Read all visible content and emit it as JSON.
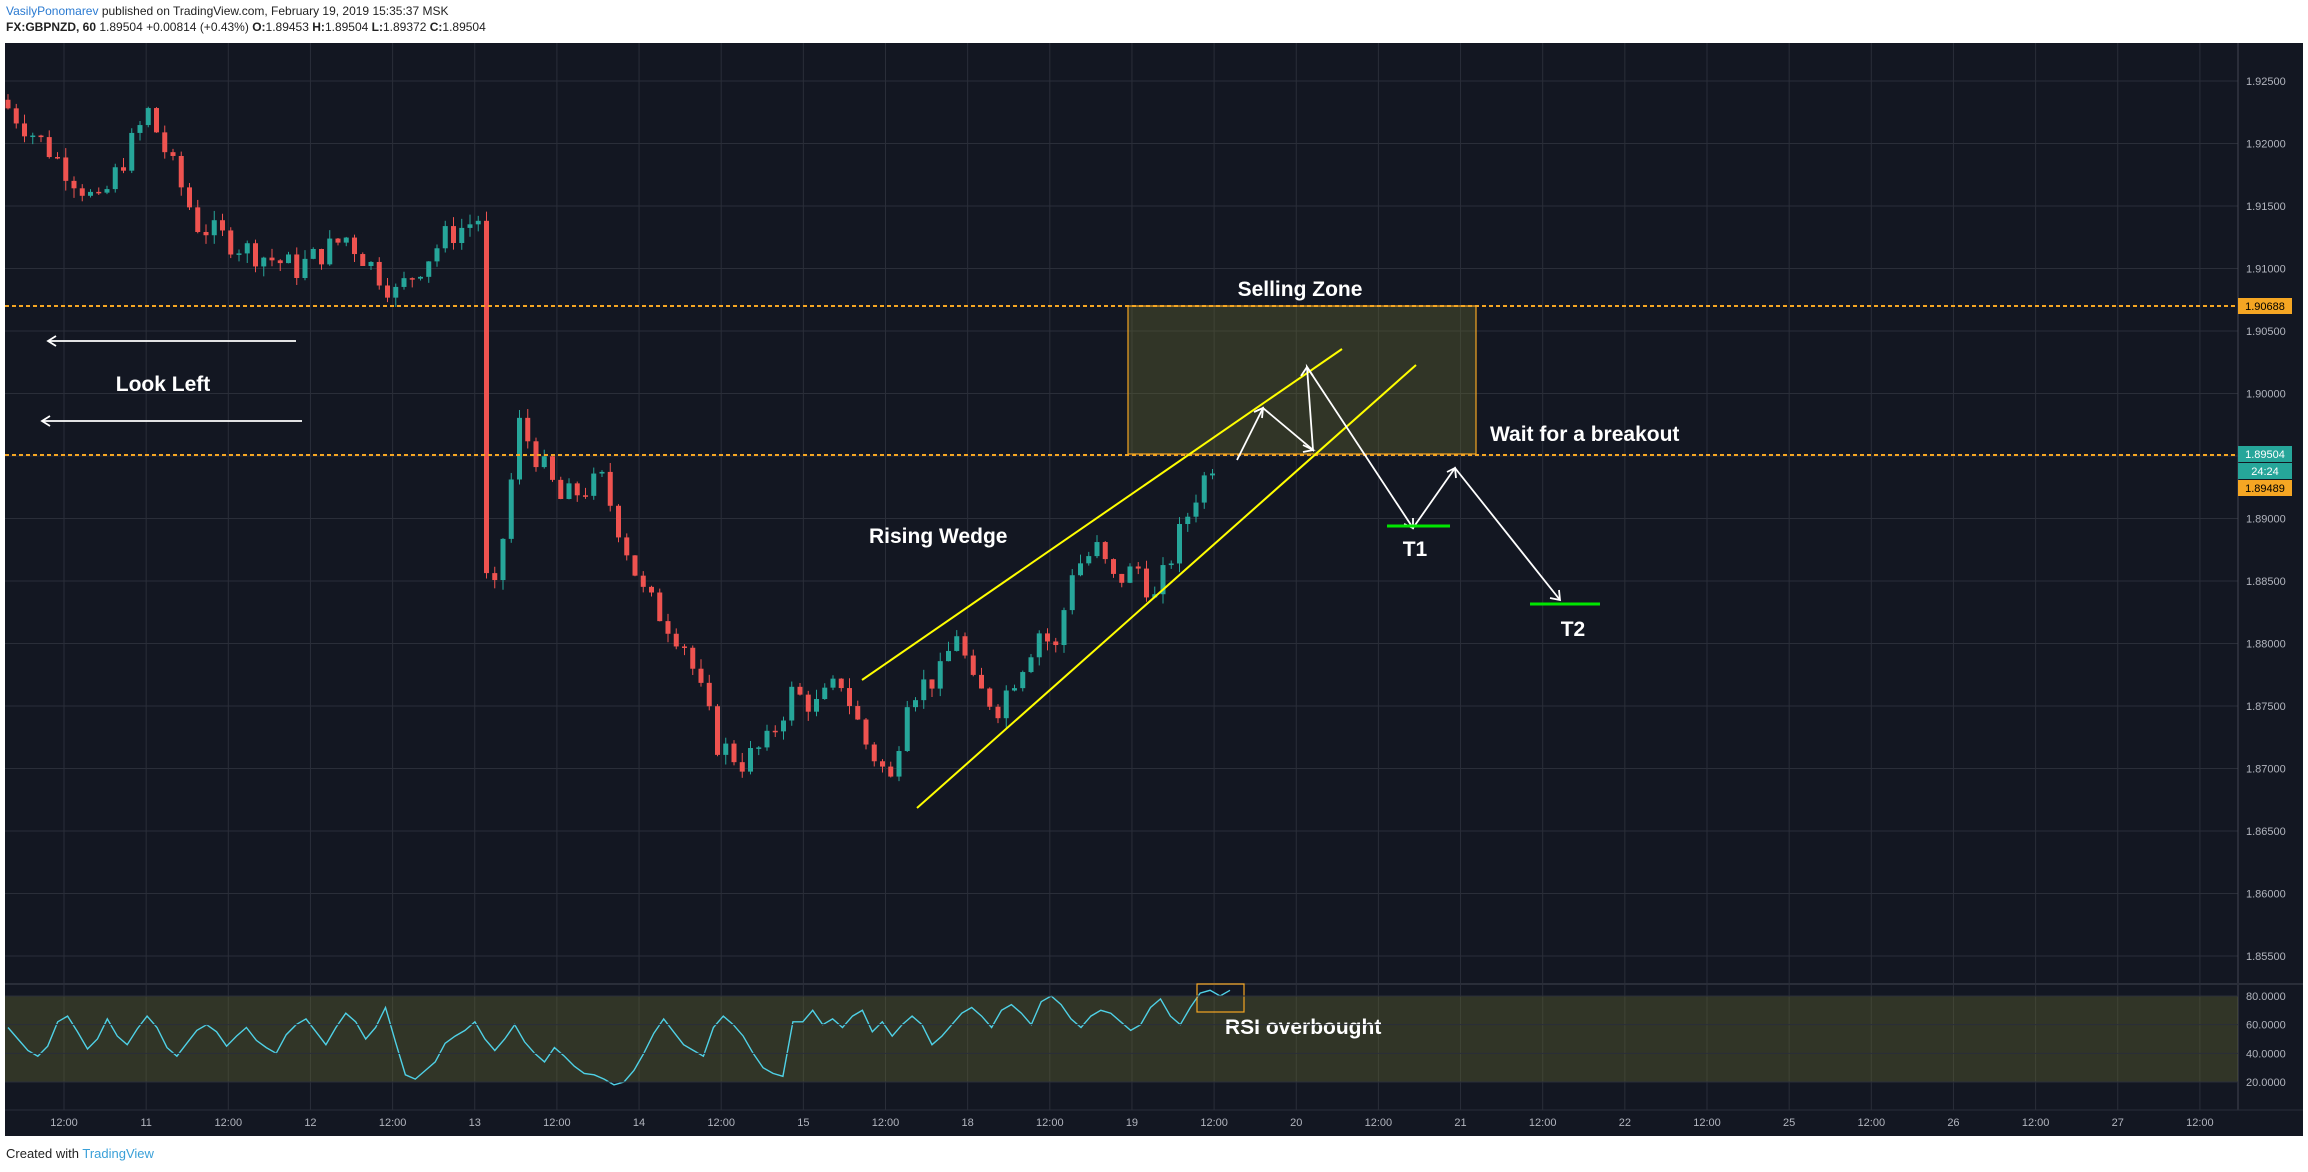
{
  "header": {
    "author": "VasilyPonomarev",
    "published": "published on TradingView.com, February 19, 2019 15:35:37 MSK",
    "symbol": "FX:GBPNZD, 60",
    "last": "1.89504",
    "change": "+0.00814 (+0.43%)",
    "o_label": "O:",
    "o": "1.89453",
    "h_label": "H:",
    "h": "1.89504",
    "l_label": "L:",
    "l": "1.89372",
    "c_label": "C:",
    "c": "1.89504"
  },
  "footer": {
    "created_with": "Created with",
    "brand": "TradingView"
  },
  "colors": {
    "background": "#131722",
    "grid": "#2a2e39",
    "up": "#26a69a",
    "down": "#ef5350",
    "level": "#f5a623",
    "wedge": "#ffff00",
    "arrows": "#ffffff",
    "target": "#00e600",
    "rsi_line": "#4fd1e6"
  },
  "annotations": {
    "selling_zone": "Selling Zone",
    "look_left": "Look Left",
    "wait": "Wait for a breakout",
    "rising_wedge": "Rising Wedge",
    "t1": "T1",
    "t2": "T2",
    "rsi": "RSI overbought"
  },
  "price_badges": {
    "upper_level": "1.90688",
    "last": "1.89504",
    "countdown": "24:24",
    "lower_level": "1.89489"
  },
  "chart_data": {
    "type": "candlestick",
    "symbol": "FX:GBPNZD",
    "interval": "60",
    "price_axis": {
      "ticks": [
        "1.92500",
        "1.92000",
        "1.91500",
        "1.91000",
        "1.90500",
        "1.90000",
        "1.89500",
        "1.89000",
        "1.88500",
        "1.88000",
        "1.87500",
        "1.87000",
        "1.86500",
        "1.86000",
        "1.85500"
      ],
      "range": [
        1.852,
        1.93
      ]
    },
    "time_axis": {
      "ticks": [
        "12:00",
        "11",
        "12:00",
        "12",
        "12:00",
        "13",
        "12:00",
        "14",
        "12:00",
        "15",
        "12:00",
        "18",
        "12:00",
        "19",
        "12:00",
        "20",
        "12:00",
        "21",
        "12:00",
        "22",
        "12:00",
        "25",
        "12:00",
        "26",
        "12:00",
        "27",
        "12:00"
      ]
    },
    "levels": [
      1.90688,
      1.89489
    ],
    "path_points": [
      [
        0,
        1.9235
      ],
      [
        6,
        1.9195
      ],
      [
        12,
        1.915
      ],
      [
        18,
        1.9225
      ],
      [
        24,
        1.9135
      ],
      [
        30,
        1.9115
      ],
      [
        36,
        1.91
      ],
      [
        42,
        1.9125
      ],
      [
        48,
        1.908
      ],
      [
        54,
        1.9125
      ],
      [
        58,
        1.914
      ],
      [
        59,
        1.885
      ],
      [
        60,
        1.884
      ],
      [
        63,
        1.8975
      ],
      [
        68,
        1.8915
      ],
      [
        73,
        1.893
      ],
      [
        78,
        1.884
      ],
      [
        83,
        1.88
      ],
      [
        87,
        1.872
      ],
      [
        90,
        1.8705
      ],
      [
        93,
        1.872
      ],
      [
        96,
        1.876
      ],
      [
        99,
        1.875
      ],
      [
        102,
        1.877
      ],
      [
        105,
        1.872
      ],
      [
        108,
        1.869
      ],
      [
        110,
        1.876
      ],
      [
        114,
        1.8775
      ],
      [
        116,
        1.881
      ],
      [
        118,
        1.8765
      ],
      [
        121,
        1.875
      ],
      [
        124,
        1.8785
      ],
      [
        126,
        1.881
      ],
      [
        128,
        1.8795
      ],
      [
        130,
        1.886
      ],
      [
        133,
        1.8875
      ],
      [
        135,
        1.885
      ],
      [
        138,
        1.886
      ],
      [
        140,
        1.8835
      ],
      [
        142,
        1.887
      ],
      [
        145,
        1.892
      ],
      [
        147,
        1.8945
      ]
    ],
    "rsi": {
      "axis_ticks": [
        "80.0000",
        "60.0000",
        "40.0000",
        "20.0000"
      ],
      "range": [
        10,
        90
      ],
      "overbought": 80,
      "oversold": 20,
      "values": [
        58,
        50,
        42,
        38,
        45,
        62,
        66,
        55,
        43,
        50,
        64,
        52,
        46,
        57,
        66,
        58,
        44,
        38,
        47,
        56,
        60,
        55,
        45,
        52,
        58,
        49,
        44,
        40,
        53,
        60,
        64,
        55,
        46,
        58,
        68,
        62,
        50,
        58,
        72,
        48,
        25,
        22,
        28,
        34,
        47,
        52,
        56,
        62,
        50,
        42,
        50,
        60,
        48,
        40,
        34,
        44,
        38,
        31,
        26,
        25,
        22,
        18,
        20,
        28,
        40,
        54,
        64,
        55,
        46,
        42,
        38,
        58,
        66,
        60,
        52,
        40,
        30,
        26,
        24,
        62,
        62,
        70,
        60,
        64,
        58,
        66,
        70,
        55,
        62,
        52,
        60,
        66,
        60,
        46,
        52,
        60,
        68,
        72,
        66,
        58,
        70,
        74,
        68,
        60,
        76,
        80,
        74,
        64,
        58,
        66,
        70,
        68,
        62,
        56,
        60,
        72,
        78,
        66,
        60,
        72,
        82,
        84,
        80,
        84
      ]
    }
  }
}
